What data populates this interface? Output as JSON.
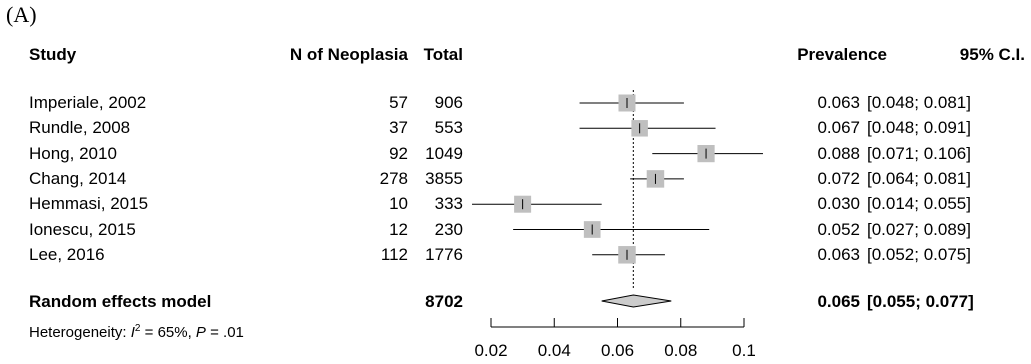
{
  "panel_label": "(A)",
  "headers": {
    "study": "Study",
    "n": "N of Neoplasia",
    "total": "Total",
    "prevalence": "Prevalence",
    "ci": "95% C.I."
  },
  "pooled": {
    "label": "Random effects model",
    "total": "8702",
    "prevalence_text": "0.065",
    "ci_text": "[0.055; 0.077]",
    "heterogeneity_prefix": "Heterogeneity: ",
    "heterogeneity_i": "I",
    "heterogeneity_sup": "2",
    "heterogeneity_mid": " = 65%, ",
    "heterogeneity_p": "P",
    "heterogeneity_end": " = .01"
  },
  "chart_data": {
    "type": "forest",
    "xlim": [
      0.02,
      0.1
    ],
    "x_ticks": [
      "0.02",
      "0.04",
      "0.06",
      "0.08",
      "0.1"
    ],
    "reference_line": 0.065,
    "studies": [
      {
        "study": "Imperiale, 2002",
        "n": "57",
        "total": "906",
        "prev": 0.063,
        "lo": 0.048,
        "hi": 0.081,
        "prev_text": "0.063",
        "ci_text": "[0.048; 0.081]",
        "weight": 0.5
      },
      {
        "study": "Rundle, 2008",
        "n": "37",
        "total": "553",
        "prev": 0.067,
        "lo": 0.048,
        "hi": 0.091,
        "prev_text": "0.067",
        "ci_text": "[0.048; 0.091]",
        "weight": 0.45
      },
      {
        "study": "Hong, 2010",
        "n": "92",
        "total": "1049",
        "prev": 0.088,
        "lo": 0.071,
        "hi": 0.106,
        "prev_text": "0.088",
        "ci_text": "[0.071; 0.106]",
        "weight": 0.52
      },
      {
        "study": "Chang, 2014",
        "n": "278",
        "total": "3855",
        "prev": 0.072,
        "lo": 0.064,
        "hi": 0.081,
        "prev_text": "0.072",
        "ci_text": "[0.064; 0.081]",
        "weight": 0.55
      },
      {
        "study": "Hemmasi, 2015",
        "n": "10",
        "total": "333",
        "prev": 0.03,
        "lo": 0.014,
        "hi": 0.055,
        "prev_text": "0.030",
        "ci_text": "[0.014; 0.055]",
        "weight": 0.5
      },
      {
        "study": "Ionescu, 2015",
        "n": "12",
        "total": "230",
        "prev": 0.052,
        "lo": 0.027,
        "hi": 0.089,
        "prev_text": "0.052",
        "ci_text": "[0.027; 0.089]",
        "weight": 0.47
      },
      {
        "study": "Lee, 2016",
        "n": "112",
        "total": "1776",
        "prev": 0.063,
        "lo": 0.052,
        "hi": 0.075,
        "prev_text": "0.063",
        "ci_text": "[0.052; 0.075]",
        "weight": 0.55
      }
    ],
    "pooled": {
      "prev": 0.065,
      "lo": 0.055,
      "hi": 0.077
    },
    "colors": {
      "square": "#bfbfbf",
      "diamond": "#cccccc",
      "line": "#000000"
    }
  }
}
